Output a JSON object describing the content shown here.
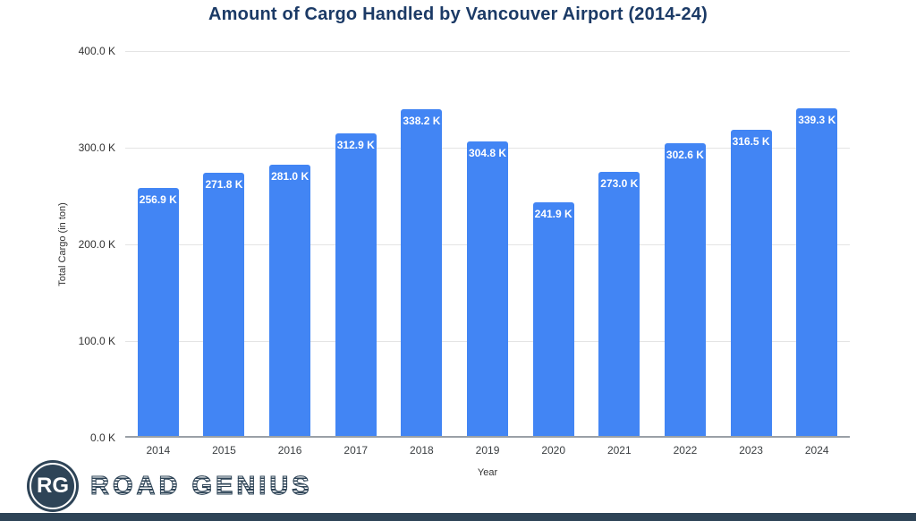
{
  "page": {
    "background": "#ffffff",
    "footer_bar_color": "#2e4457"
  },
  "chart_data": {
    "type": "bar",
    "title": "Amount of Cargo Handled by Vancouver Airport (2014-24)",
    "xlabel": "Year",
    "ylabel": "Total Cargo (in ton)",
    "categories": [
      "2014",
      "2015",
      "2016",
      "2017",
      "2018",
      "2019",
      "2020",
      "2021",
      "2022",
      "2023",
      "2024"
    ],
    "values": [
      256.9,
      271.8,
      281.0,
      312.9,
      338.2,
      304.8,
      241.9,
      273.0,
      302.6,
      316.5,
      339.3
    ],
    "bar_labels": [
      "256.9 K",
      "271.8 K",
      "281.0 K",
      "312.9 K",
      "338.2 K",
      "304.8 K",
      "241.9 K",
      "273.0 K",
      "302.6 K",
      "316.5 K",
      "339.3 K"
    ],
    "ylim": [
      0,
      400
    ],
    "ytick_labels": [
      "400.0 K",
      "300.0 K",
      "200.0 K",
      "100.0 K",
      "0.0 K"
    ],
    "grid": true,
    "legend_position": "none",
    "bar_color": "#4285f4",
    "bar_label_color": "#ffffff",
    "title_color": "#1b3a66"
  },
  "branding": {
    "monogram": "RG",
    "name": "ROAD GENIUS"
  }
}
